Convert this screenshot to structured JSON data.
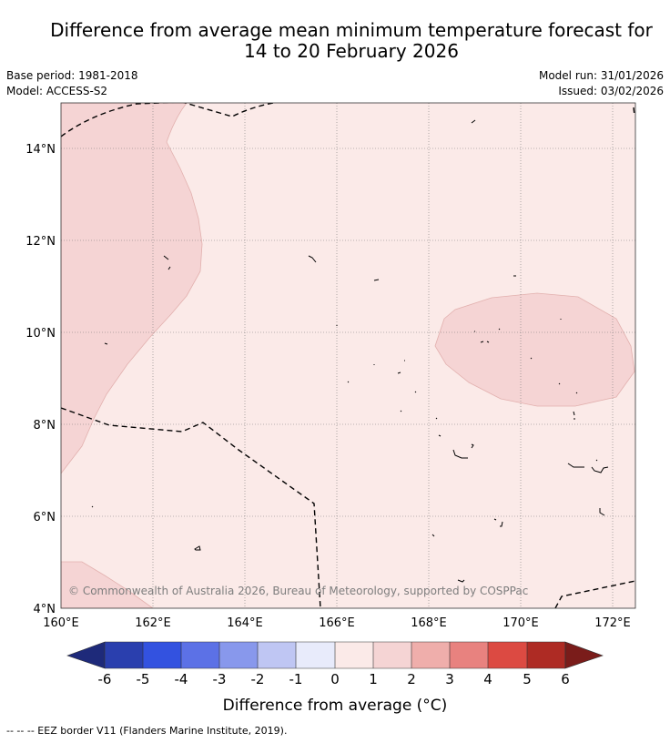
{
  "title_line1": "Difference from average mean minimum temperature forecast for",
  "title_line2": "14 to 20 February 2026",
  "base_period": "Base period: 1981-2018",
  "model": "Model: ACCESS-S2",
  "model_run": "Model run: 31/01/2026",
  "issued": "Issued: 03/02/2026",
  "copyright": "© Commonwealth of Australia 2026, Bureau of Meteorology, supported by COSPPac",
  "map": {
    "lon_labels": [
      "160°E",
      "162°E",
      "164°E",
      "166°E",
      "168°E",
      "170°E",
      "172°E"
    ],
    "lat_labels": [
      "14°N",
      "12°N",
      "10°N",
      "8°N",
      "6°N",
      "4°N"
    ]
  },
  "colorbar": {
    "ticks": [
      "-6",
      "-5",
      "-4",
      "-3",
      "-2",
      "-1",
      "0",
      "1",
      "2",
      "3",
      "4",
      "5",
      "6"
    ],
    "colors": [
      "#1e2a7a",
      "#2a3fae",
      "#3352e0",
      "#5c71e6",
      "#8898ec",
      "#bfc6f3",
      "#e8ebfb",
      "#fbeae8",
      "#f5d4d4",
      "#efaeab",
      "#e8827f",
      "#dc4a42",
      "#ae2b24",
      "#7a1c1a"
    ],
    "label": "Difference from average (°C)"
  },
  "legend_footer": "--  --  -- EEZ border V11 (Flanders Marine Institute, 2019)."
}
